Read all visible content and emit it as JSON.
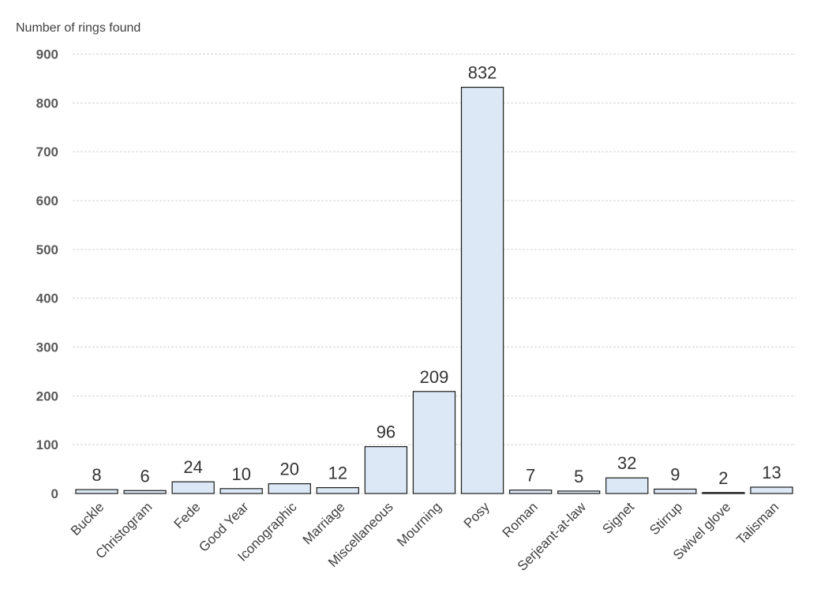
{
  "chart_data": {
    "type": "bar",
    "title": "",
    "xlabel": "",
    "ylabel": "Number of rings found",
    "ylim": [
      0,
      900
    ],
    "yticks": [
      "0",
      "100",
      "200",
      "300",
      "400",
      "500",
      "600",
      "700",
      "800",
      "900"
    ],
    "grid": true,
    "legend": "none",
    "categories": [
      "Buckle",
      "Christogram",
      "Fede",
      "Good Year",
      "Iconographic",
      "Marriage",
      "Miscellaneous",
      "Mourning",
      "Posy",
      "Roman",
      "Serjeant-at-law",
      "Signet",
      "Stirrup",
      "Swivel glove",
      "Talisman"
    ],
    "values": [
      8,
      6,
      24,
      10,
      20,
      12,
      96,
      209,
      832,
      7,
      5,
      32,
      9,
      2,
      13
    ],
    "data_labels": [
      "8",
      "6",
      "24",
      "10",
      "20",
      "12",
      "96",
      "209",
      "832",
      "7",
      "5",
      "32",
      "9",
      "2",
      "13"
    ],
    "colors": {
      "bar_fill": "#dce8f5",
      "bar_stroke": "#1a1a1a",
      "grid": "#d4d4d4"
    }
  }
}
